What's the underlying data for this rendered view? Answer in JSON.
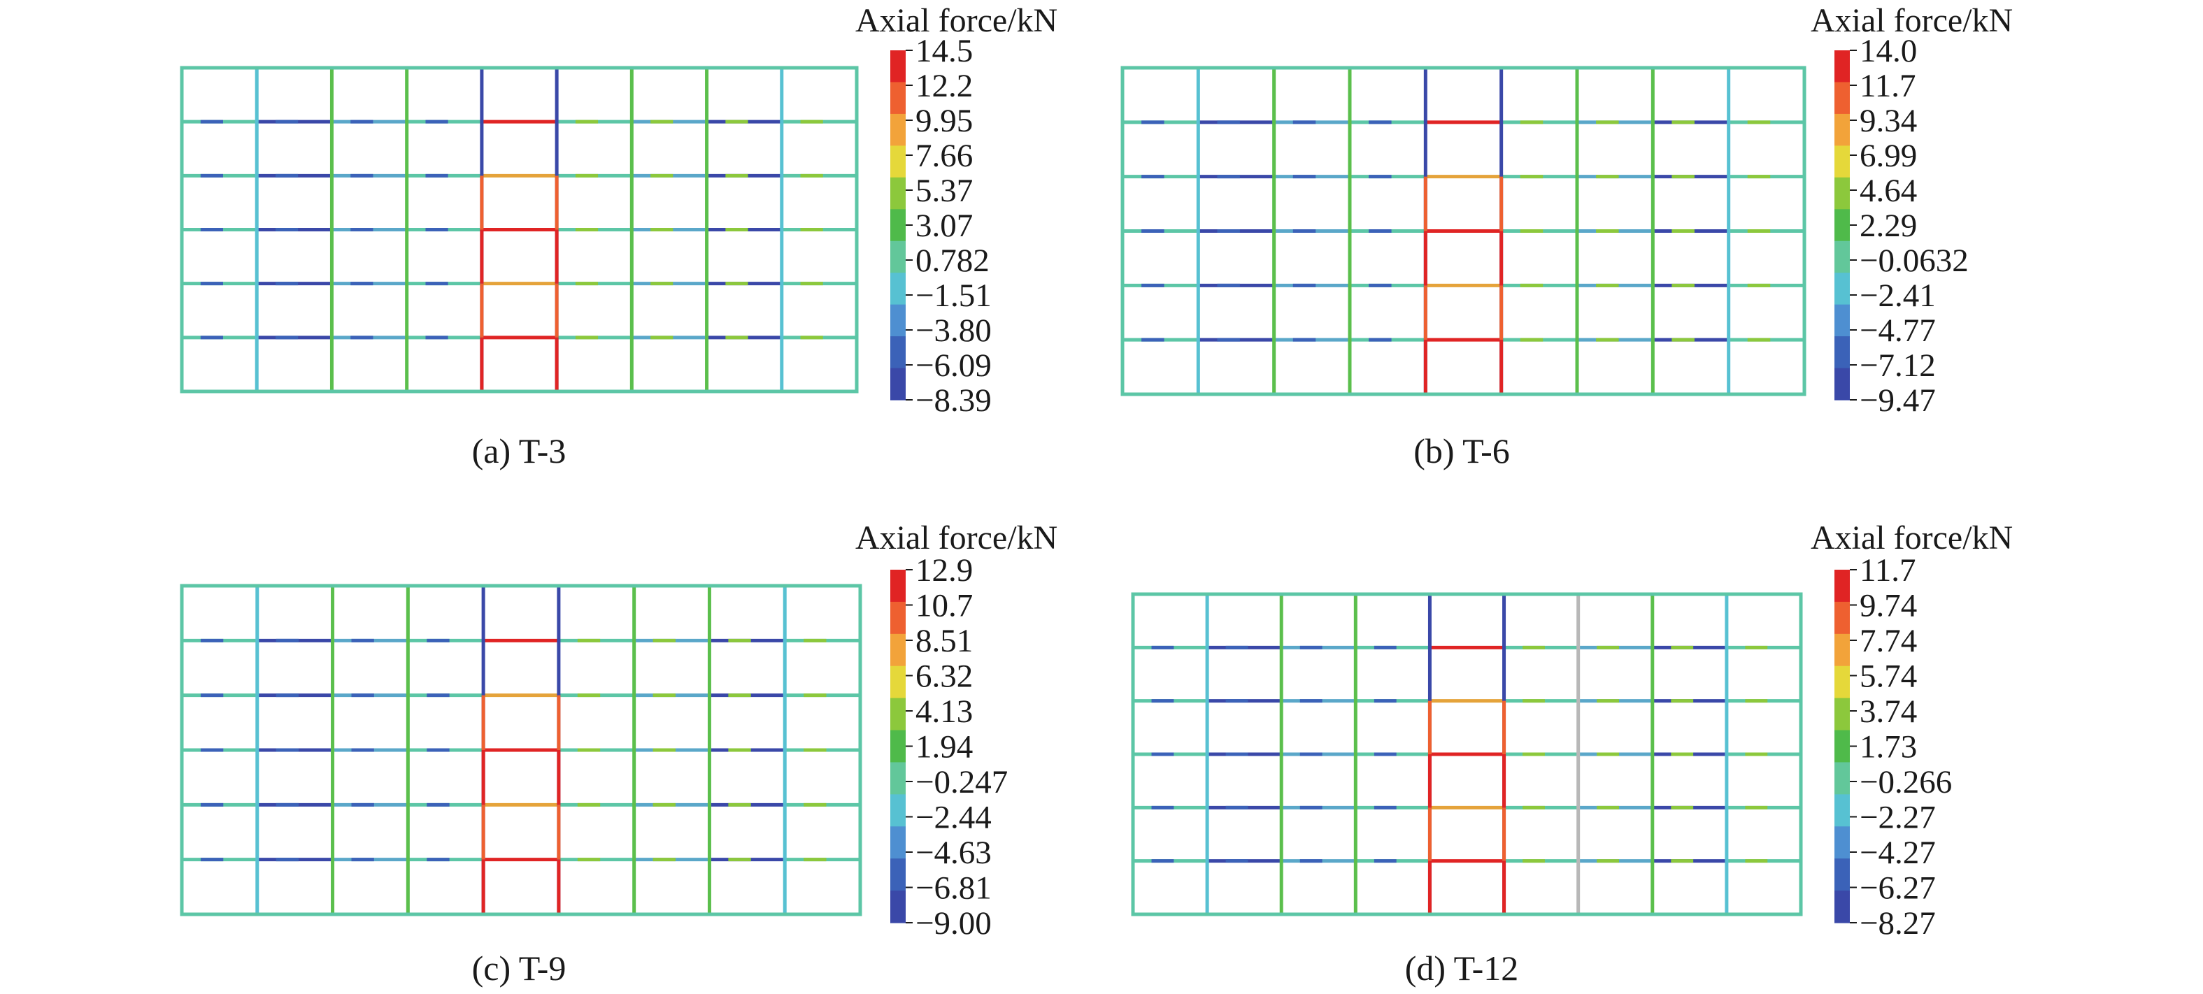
{
  "palette": [
    "#3a48a8",
    "#3b62b8",
    "#4e8fd1",
    "#57c1d2",
    "#62c79a",
    "#4fba4a",
    "#8cc83c",
    "#e5d83a",
    "#f2a33a",
    "#ee6030",
    "#e02424"
  ],
  "base_colors": {
    "beam": "#5cc6a6",
    "frame_green": "#5bbf4c",
    "compression": "#3a48a8",
    "tension": "#e02424",
    "mid": "#e5a33a",
    "gray": "#b8b8b8"
  },
  "panels": [
    {
      "label": "(a) T-3",
      "colorbar_title": "Axial force/kN",
      "ticks": [
        "14.5",
        "12.2",
        "9.95",
        "7.66",
        "5.37",
        "3.07",
        "0.782",
        "−1.51",
        "−3.80",
        "−6.09",
        "−8.39"
      ]
    },
    {
      "label": "(b) T-6",
      "colorbar_title": "Axial force/kN",
      "ticks": [
        "14.0",
        "11.7",
        "9.34",
        "6.99",
        "4.64",
        "2.29",
        "−0.0632",
        "−2.41",
        "−4.77",
        "−7.12",
        "−9.47"
      ]
    },
    {
      "label": "(c) T-9",
      "colorbar_title": "Axial force/kN",
      "ticks": [
        "12.9",
        "10.7",
        "8.51",
        "6.32",
        "4.13",
        "1.94",
        "−0.247",
        "−2.44",
        "−4.63",
        "−6.81",
        "−9.00"
      ]
    },
    {
      "label": "(d) T-12",
      "colorbar_title": "Axial force/kN",
      "ticks": [
        "11.7",
        "9.74",
        "7.74",
        "5.74",
        "3.74",
        "1.73",
        "−0.266",
        "−2.27",
        "−4.27",
        "−6.27",
        "−8.27"
      ]
    }
  ]
}
